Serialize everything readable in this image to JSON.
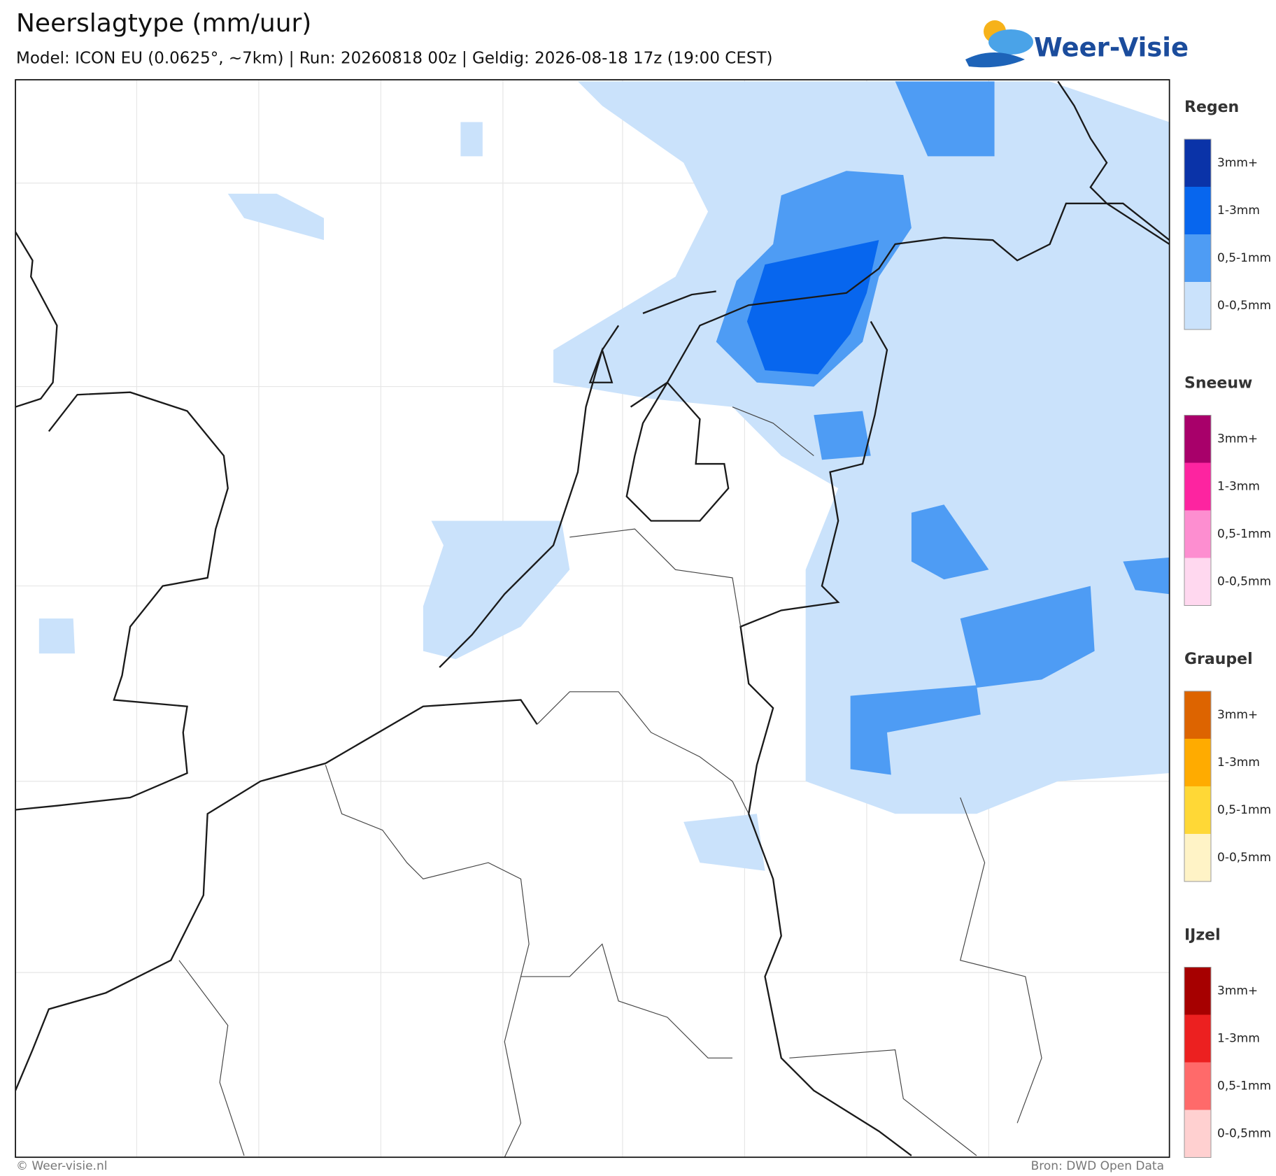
{
  "header": {
    "title": "Neerslagtype (mm/uur)",
    "subtitle": "Model: ICON EU (0.0625°, ~7km)  |  Run: 20260818 00z  |  Geldig: 2026-08-18 17z (19:00 CEST)",
    "logo": "Weer-Visie"
  },
  "legend": {
    "sections": [
      {
        "title": "Regen",
        "items": [
          {
            "label": "3mm+",
            "color": "#0a33a8"
          },
          {
            "label": "1-3mm",
            "color": "#0766ee"
          },
          {
            "label": "0,5-1mm",
            "color": "#4e9cf4"
          },
          {
            "label": "0-0,5mm",
            "color": "#cae2fb"
          }
        ]
      },
      {
        "title": "Sneeuw",
        "items": [
          {
            "label": "3mm+",
            "color": "#a8006a"
          },
          {
            "label": "1-3mm",
            "color": "#fd24a0"
          },
          {
            "label": "0,5-1mm",
            "color": "#fd8ed0"
          },
          {
            "label": "0-0,5mm",
            "color": "#ffd8ef"
          }
        ]
      },
      {
        "title": "Graupel",
        "items": [
          {
            "label": "3mm+",
            "color": "#dd6400"
          },
          {
            "label": "1-3mm",
            "color": "#ffab00"
          },
          {
            "label": "0,5-1mm",
            "color": "#ffd836"
          },
          {
            "label": "0-0,5mm",
            "color": "#fff3c6"
          }
        ]
      },
      {
        "title": "IJzel",
        "items": [
          {
            "label": "3mm+",
            "color": "#a60000"
          },
          {
            "label": "1-3mm",
            "color": "#ec2020"
          },
          {
            "label": "0,5-1mm",
            "color": "#ff6a6a"
          },
          {
            "label": "0-0,5mm",
            "color": "#ffd0d0"
          }
        ]
      }
    ]
  },
  "footer": {
    "copyright": "© Weer-visie.nl",
    "source": "Bron: DWD Open Data"
  }
}
